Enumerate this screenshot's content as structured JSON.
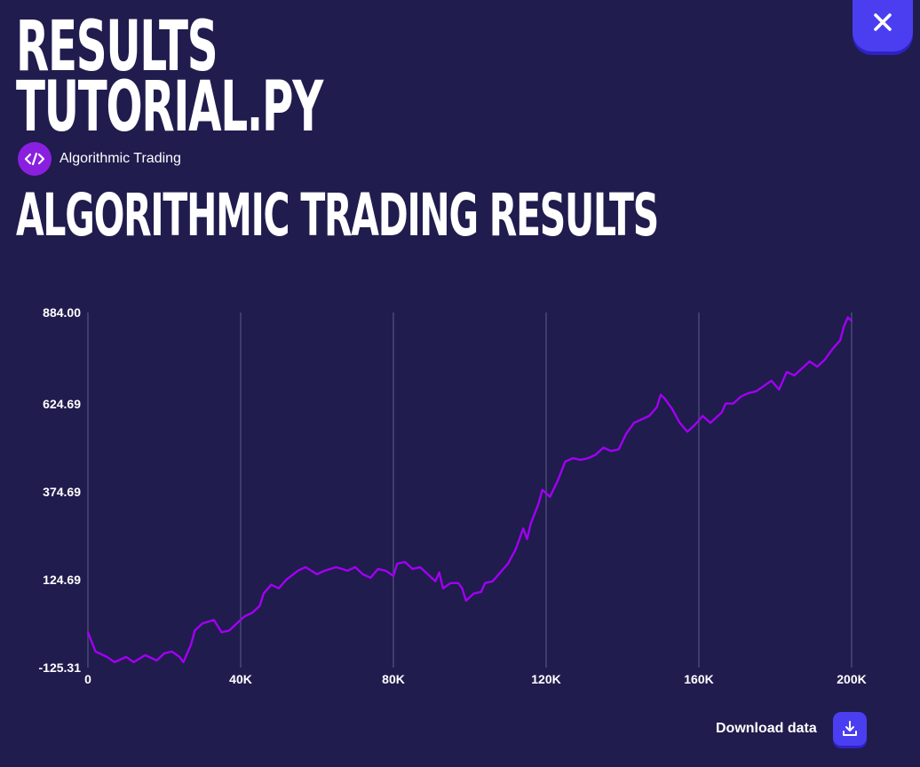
{
  "header": {
    "title_line1": "RESULTS",
    "title_line2": "TUTORIAL.PY",
    "close_icon": "close-icon"
  },
  "tag": {
    "icon": "code-icon",
    "label": "Algorithmic Trading"
  },
  "section": {
    "title": "ALGORITHMIC TRADING RESULTS"
  },
  "colors": {
    "background": "#201c4e",
    "line": "#a100f2",
    "accent": "#4b3ef0",
    "tag_bg": "#8a1fe0",
    "grid": "#4e4a78"
  },
  "chart_data": {
    "type": "line",
    "title": "",
    "xlabel": "",
    "ylabel": "",
    "xlim": [
      0,
      200000
    ],
    "ylim": [
      -125.31,
      884.0
    ],
    "x_ticks": [
      0,
      40000,
      80000,
      120000,
      160000,
      200000
    ],
    "x_tick_labels": [
      "0",
      "40K",
      "80K",
      "120K",
      "160K",
      "200K"
    ],
    "y_tick_labels": [
      "884.00",
      "624.69",
      "374.69",
      "124.69",
      "-125.31"
    ],
    "y_ticks": [
      884.0,
      624.69,
      374.69,
      124.69,
      -125.31
    ],
    "grid": "vertical",
    "series": [
      {
        "values": [
          [
            0,
            -25
          ],
          [
            2000,
            -80
          ],
          [
            5000,
            -95
          ],
          [
            7000,
            -110
          ],
          [
            10000,
            -95
          ],
          [
            12000,
            -110
          ],
          [
            15000,
            -90
          ],
          [
            18000,
            -105
          ],
          [
            20000,
            -85
          ],
          [
            22000,
            -80
          ],
          [
            24000,
            -95
          ],
          [
            25000,
            -110
          ],
          [
            27000,
            -60
          ],
          [
            28000,
            -20
          ],
          [
            30000,
            0
          ],
          [
            33000,
            10
          ],
          [
            35000,
            -25
          ],
          [
            37000,
            -20
          ],
          [
            39000,
            0
          ],
          [
            41000,
            20
          ],
          [
            43000,
            30
          ],
          [
            45000,
            50
          ],
          [
            46000,
            85
          ],
          [
            48000,
            110
          ],
          [
            50000,
            100
          ],
          [
            52000,
            125
          ],
          [
            55000,
            150
          ],
          [
            57000,
            160
          ],
          [
            60000,
            140
          ],
          [
            62000,
            150
          ],
          [
            65000,
            160
          ],
          [
            68000,
            150
          ],
          [
            70000,
            160
          ],
          [
            72000,
            140
          ],
          [
            74000,
            130
          ],
          [
            76000,
            155
          ],
          [
            78000,
            150
          ],
          [
            80000,
            135
          ],
          [
            81000,
            170
          ],
          [
            83000,
            175
          ],
          [
            85000,
            155
          ],
          [
            87000,
            160
          ],
          [
            89000,
            140
          ],
          [
            91000,
            120
          ],
          [
            92000,
            145
          ],
          [
            93000,
            100
          ],
          [
            95000,
            115
          ],
          [
            97000,
            115
          ],
          [
            98000,
            100
          ],
          [
            99000,
            65
          ],
          [
            101000,
            85
          ],
          [
            103000,
            90
          ],
          [
            104000,
            115
          ],
          [
            106000,
            120
          ],
          [
            108000,
            145
          ],
          [
            110000,
            170
          ],
          [
            112000,
            210
          ],
          [
            114000,
            270
          ],
          [
            115000,
            240
          ],
          [
            116000,
            285
          ],
          [
            118000,
            340
          ],
          [
            119000,
            380
          ],
          [
            121000,
            360
          ],
          [
            123000,
            405
          ],
          [
            125000,
            460
          ],
          [
            127000,
            470
          ],
          [
            129000,
            465
          ],
          [
            131000,
            470
          ],
          [
            133000,
            480
          ],
          [
            135000,
            500
          ],
          [
            137000,
            490
          ],
          [
            139000,
            495
          ],
          [
            141000,
            540
          ],
          [
            143000,
            570
          ],
          [
            145000,
            580
          ],
          [
            147000,
            590
          ],
          [
            149000,
            615
          ],
          [
            150000,
            650
          ],
          [
            151000,
            640
          ],
          [
            153000,
            610
          ],
          [
            155000,
            570
          ],
          [
            157000,
            545
          ],
          [
            159000,
            565
          ],
          [
            161000,
            590
          ],
          [
            163000,
            570
          ],
          [
            165000,
            590
          ],
          [
            166000,
            600
          ],
          [
            167000,
            625
          ],
          [
            169000,
            625
          ],
          [
            171000,
            645
          ],
          [
            173000,
            655
          ],
          [
            175000,
            660
          ],
          [
            177000,
            675
          ],
          [
            179000,
            690
          ],
          [
            181000,
            665
          ],
          [
            183000,
            715
          ],
          [
            185000,
            705
          ],
          [
            187000,
            725
          ],
          [
            189000,
            745
          ],
          [
            191000,
            730
          ],
          [
            193000,
            750
          ],
          [
            195000,
            780
          ],
          [
            197000,
            805
          ],
          [
            198000,
            845
          ],
          [
            199000,
            870
          ],
          [
            200000,
            860
          ]
        ]
      }
    ]
  },
  "download": {
    "label": "Download data",
    "icon": "download-icon"
  }
}
